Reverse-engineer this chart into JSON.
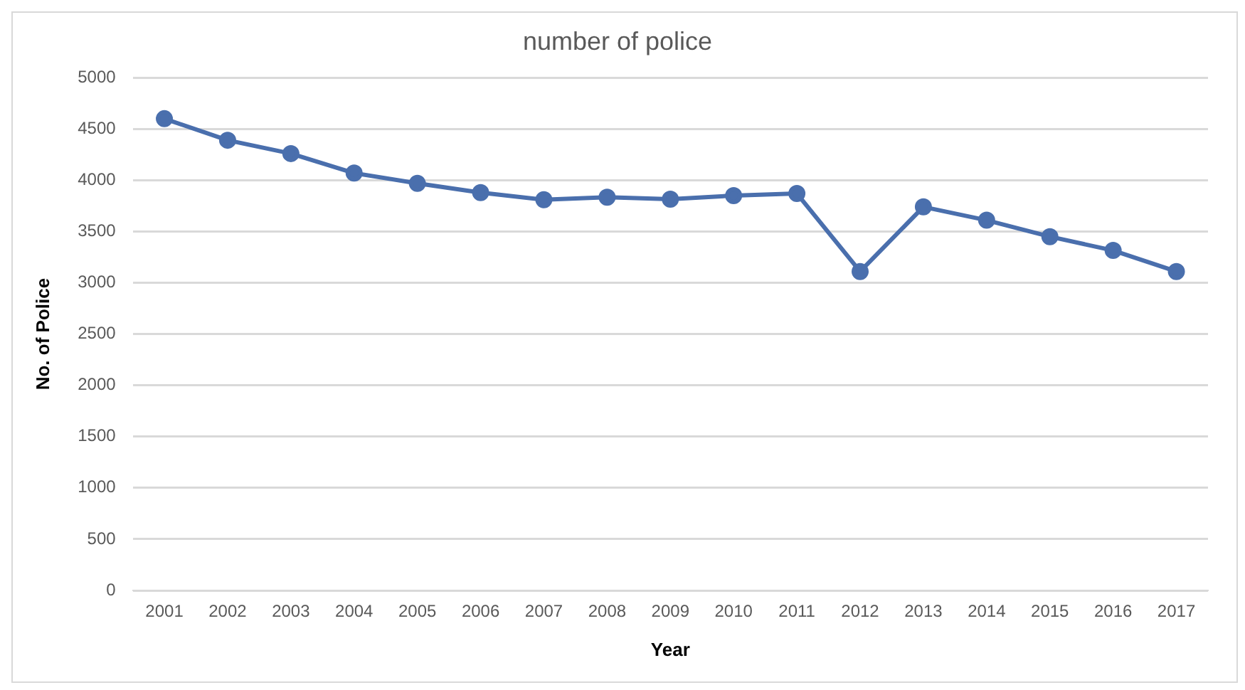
{
  "chart_data": {
    "type": "line",
    "title": "number of police",
    "xlabel": "Year",
    "ylabel": "No. of Police",
    "categories": [
      "2001",
      "2002",
      "2003",
      "2004",
      "2005",
      "2006",
      "2007",
      "2008",
      "2009",
      "2010",
      "2011",
      "2012",
      "2013",
      "2014",
      "2015",
      "2016",
      "2017"
    ],
    "series": [
      {
        "color": "#4a6fad",
        "values": [
          4600,
          4390,
          4260,
          4070,
          3970,
          3880,
          3810,
          3835,
          3815,
          3850,
          3870,
          3110,
          3740,
          3610,
          3450,
          3315,
          3110
        ]
      }
    ],
    "ylim": [
      0,
      5000
    ],
    "yticks": [
      0,
      500,
      1000,
      1500,
      2000,
      2500,
      3000,
      3500,
      4000,
      4500,
      5000
    ],
    "grid": "y",
    "marker": "circle",
    "line_style": "solid",
    "legend": false
  }
}
